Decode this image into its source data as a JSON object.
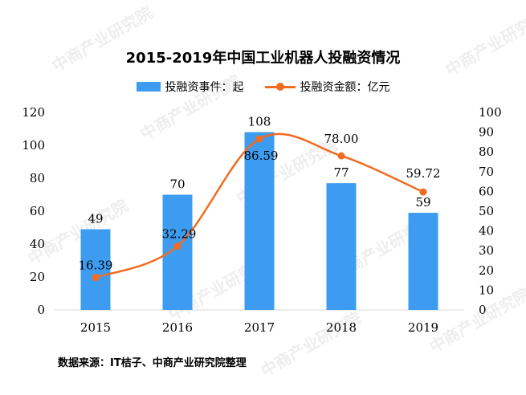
{
  "chart_data": {
    "type": "bar+line",
    "title": "2015-2019年中国工业机器人投融资情况",
    "categories": [
      "2015",
      "2016",
      "2017",
      "2018",
      "2019"
    ],
    "series": [
      {
        "name": "投融资事件：起",
        "type": "bar",
        "axis": "left",
        "values": [
          49,
          70,
          108,
          77,
          59
        ],
        "color": "#3d9cf0"
      },
      {
        "name": "投融资金额：亿元",
        "type": "line",
        "axis": "right",
        "values": [
          16.39,
          32.29,
          86.59,
          78.0,
          59.72
        ],
        "labels": [
          "16.39",
          "32.29",
          "86.59",
          "78.00",
          "59.72"
        ],
        "color": "#f26b21"
      }
    ],
    "ylim_left": [
      0,
      120
    ],
    "yticks_left": [
      "0",
      "20",
      "40",
      "60",
      "80",
      "100",
      "120"
    ],
    "ylim_right": [
      0,
      100
    ],
    "yticks_right": [
      "0",
      "10",
      "20",
      "30",
      "40",
      "50",
      "60",
      "70",
      "80",
      "90",
      "100"
    ],
    "grid": false,
    "legend_position": "top"
  },
  "source": "数据来源：IT桔子、中商产业研究院整理",
  "watermark": "中商产业研究院 www.askci.com/reports"
}
